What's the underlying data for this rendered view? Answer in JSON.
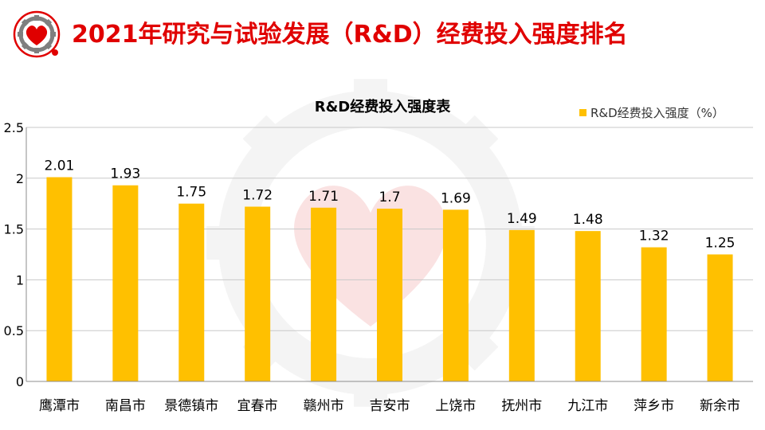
{
  "header": {
    "title": "2021年研究与试验发展（R&D）经费投入强度排名"
  },
  "colors": {
    "title": "#e00000",
    "bar": "#ffc000",
    "watermark_gear": "#bfbfbf",
    "watermark_heart": "#e55353"
  },
  "icons": {
    "logo": "gear-heart-logo-icon",
    "watermark": "gear-heart-watermark-icon"
  },
  "chart_data": {
    "type": "bar",
    "title": "R&D经费投入强度表",
    "legend_position": "top-right",
    "grid": true,
    "categories": [
      "鹰潭市",
      "南昌市",
      "景德镇市",
      "宜春市",
      "赣州市",
      "吉安市",
      "上饶市",
      "抚州市",
      "九江市",
      "萍乡市",
      "新余市"
    ],
    "series": [
      {
        "name": "R&D经费投入强度（%）",
        "values": [
          2.01,
          1.93,
          1.75,
          1.72,
          1.71,
          1.7,
          1.69,
          1.49,
          1.48,
          1.32,
          1.25
        ],
        "labels": [
          "2.01",
          "1.93",
          "1.75",
          "1.72",
          "1.71",
          "1.7",
          "1.69",
          "1.49",
          "1.48",
          "1.32",
          "1.25"
        ]
      }
    ],
    "ylim": [
      0,
      2.5
    ],
    "yticks": [
      "0",
      "0.5",
      "1",
      "1.5",
      "2",
      "2.5"
    ]
  }
}
